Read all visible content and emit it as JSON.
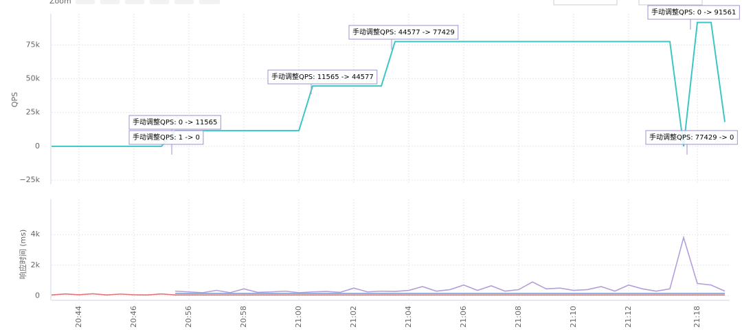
{
  "toolbar": {
    "zoom": "Zoom"
  },
  "chart_data": [
    {
      "type": "line",
      "y_label": "QPS",
      "categories": [
        null,
        null,
        "20:44",
        null,
        null,
        null,
        "20:46",
        null,
        null,
        null,
        "20:56",
        null,
        null,
        null,
        "20:58",
        null,
        null,
        null,
        "21:00",
        null,
        null,
        null,
        "21:02",
        null,
        null,
        null,
        "21:04",
        null,
        null,
        null,
        "21:06",
        null,
        null,
        null,
        "21:08",
        null,
        null,
        null,
        "21:10",
        null,
        null,
        null,
        "21:12",
        null,
        null,
        null,
        null,
        "21:18",
        null,
        null
      ],
      "series": [
        {
          "color": "#3cc5c5",
          "values": [
            0,
            0,
            0,
            0,
            0,
            0,
            0,
            0,
            0,
            11565,
            11565,
            11565,
            11565,
            11565,
            11565,
            11565,
            11565,
            11565,
            11565,
            44577,
            44577,
            44577,
            44577,
            44577,
            44577,
            77429,
            77429,
            77429,
            77429,
            77429,
            77429,
            77429,
            77429,
            77429,
            77429,
            77429,
            77429,
            77429,
            77429,
            77429,
            77429,
            77429,
            77429,
            77429,
            77429,
            77429,
            0,
            91561,
            91561,
            18000
          ]
        }
      ],
      "ylim": [
        -28000,
        98000
      ],
      "yticks": [
        {
          "value": -25000,
          "label": "−25k"
        },
        0,
        {
          "value": 25000,
          "label": "25k"
        },
        {
          "value": 50000,
          "label": "50k"
        },
        {
          "value": 75000,
          "label": "75k"
        }
      ],
      "grid": true,
      "annotations": [
        "手动调整QPS: 0 -> 11565",
        "手动调整QPS: 1 -> 0",
        "手动调整QPS: 11565 -> 44577",
        "手动调整QPS: 44577 -> 77429",
        "手动调整QPS: 0 -> 91561",
        "手动调整QPS: 77429 -> 0"
      ]
    },
    {
      "type": "line",
      "y_label": "响应时间 (ms)",
      "series": [
        {
          "color": "#b39ddb",
          "values": [
            null,
            null,
            null,
            null,
            null,
            null,
            null,
            null,
            null,
            300,
            250,
            200,
            350,
            200,
            450,
            220,
            250,
            300,
            200,
            250,
            280,
            220,
            500,
            250,
            300,
            280,
            350,
            600,
            300,
            400,
            700,
            350,
            650,
            300,
            400,
            900,
            450,
            500,
            350,
            400,
            600,
            300,
            700,
            450,
            300,
            450,
            3800,
            800,
            700,
            300
          ]
        },
        {
          "color": "#7aa0d8",
          "values": [
            null,
            null,
            null,
            null,
            null,
            null,
            null,
            null,
            null,
            150,
            150,
            150,
            150,
            150,
            150,
            150,
            150,
            150,
            150,
            150,
            150,
            150,
            150,
            150,
            150,
            150,
            150,
            150,
            150,
            150,
            150,
            150,
            150,
            150,
            150,
            150,
            150,
            150,
            150,
            150,
            150,
            150,
            150,
            150,
            150,
            150,
            150,
            150,
            150,
            150
          ]
        },
        {
          "color": "#e57373",
          "values": [
            50,
            120,
            60,
            130,
            50,
            110,
            60,
            50,
            120,
            50,
            50,
            50,
            50,
            50,
            50,
            50,
            50,
            50,
            50,
            50,
            50,
            50,
            50,
            50,
            50,
            50,
            50,
            50,
            50,
            50,
            50,
            50,
            50,
            50,
            50,
            50,
            50,
            50,
            50,
            50,
            50,
            50,
            50,
            50,
            50,
            50,
            50,
            50,
            50,
            50
          ]
        }
      ],
      "ylim": [
        -300,
        6300
      ],
      "yticks": [
        0,
        {
          "value": 2000,
          "label": "2k"
        },
        {
          "value": 4000,
          "label": "4k"
        }
      ],
      "grid": true
    }
  ]
}
